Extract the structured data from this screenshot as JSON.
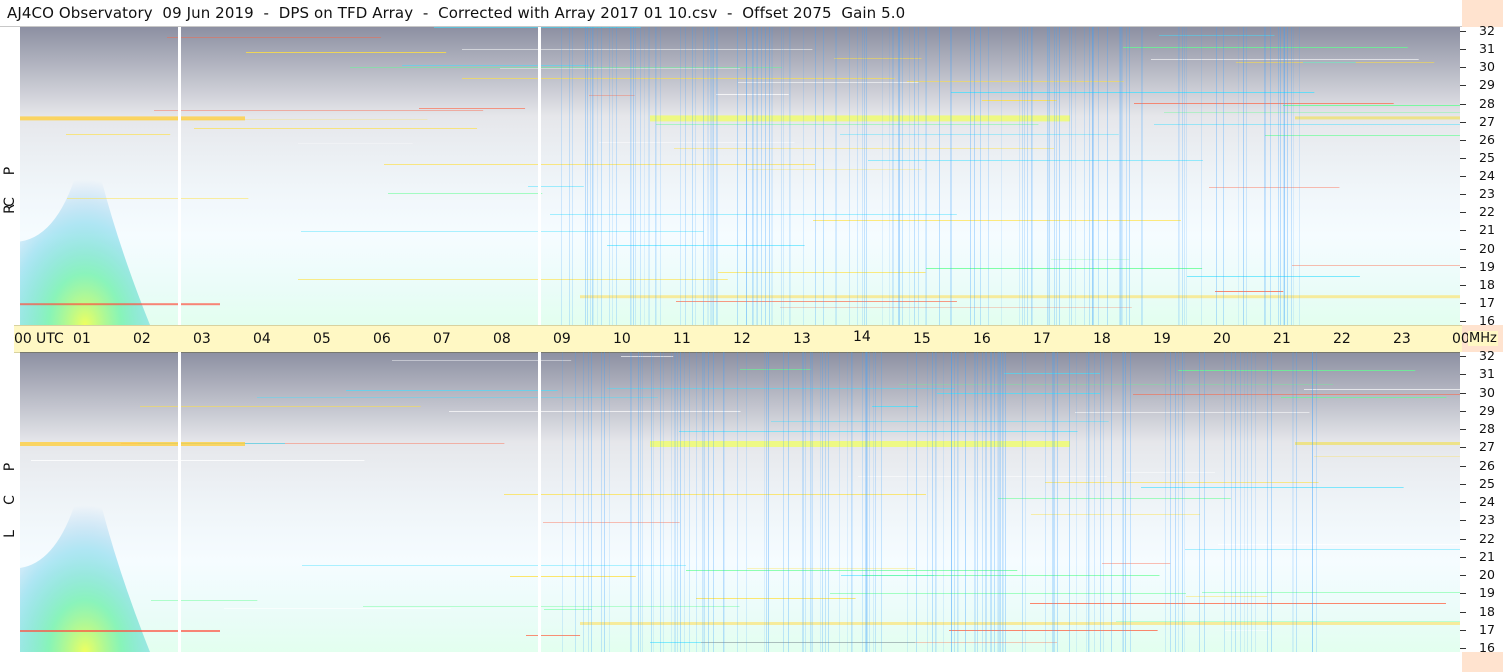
{
  "title": "AJ4CO Observatory  09 Jun 2019  -  DPS on TFD Array  -  Corrected with Array 2017 01 10.csv  -  Offset 2075  Gain 5.0",
  "colors": {
    "background": "#ffffff",
    "time_axis_bg": "#fff8c4",
    "freq_axis_bg": "#ffe3cf",
    "spectrum_low": "#020a3a",
    "spectrum_mid": "#1a7fe0",
    "spectrum_high": "#f5ff40"
  },
  "panels": [
    {
      "polarization": [
        "R",
        "C",
        "P"
      ]
    },
    {
      "polarization": [
        "L",
        "C",
        "P"
      ]
    }
  ],
  "time_axis": {
    "labels": [
      "00",
      "UTC",
      "01",
      "02",
      "03",
      "04",
      "05",
      "06",
      "07",
      "08",
      "09",
      "10",
      "11",
      "12",
      "13",
      "14",
      "15",
      "16",
      "17",
      "18",
      "19",
      "20",
      "21",
      "22",
      "23",
      "00"
    ],
    "unit": "MHz"
  },
  "frequency_axis": {
    "labels": [
      "32",
      "31",
      "30",
      "29",
      "28",
      "27",
      "26",
      "25",
      "24",
      "23",
      "22",
      "21",
      "20",
      "19",
      "18",
      "17",
      "16"
    ]
  }
}
